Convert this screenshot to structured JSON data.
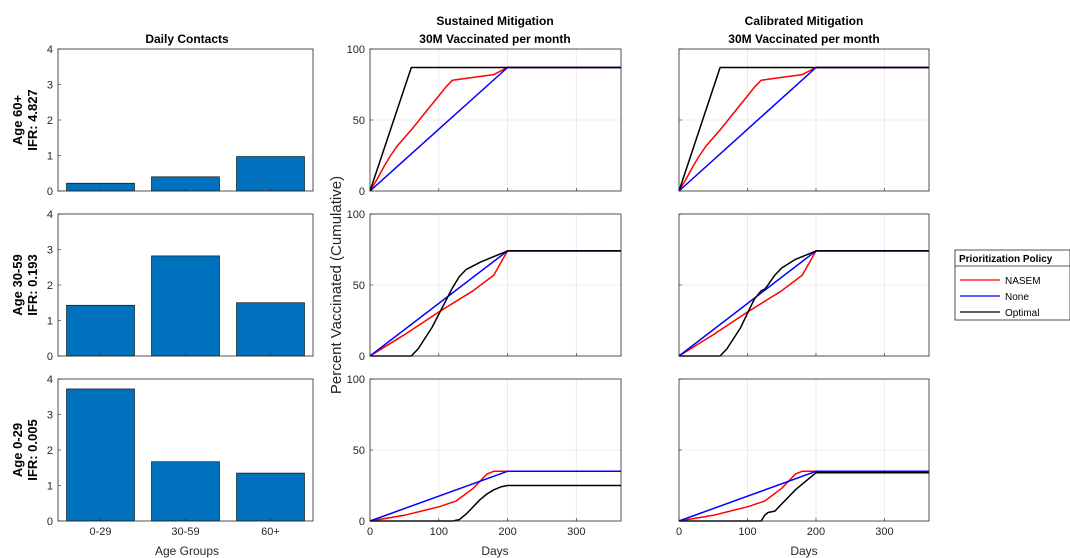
{
  "figure": {
    "bar_title": "Daily Contacts",
    "sustained_title_1": "Sustained Mitigation",
    "sustained_title_2": "30M Vaccinated per month",
    "calibrated_title_1": "Calibrated Mitigation",
    "calibrated_title_2": "30M Vaccinated per month",
    "shared_ylabel": "Percent Vaccinated (Cumulative)",
    "bar_xlabel": "Age Groups",
    "line_xlabel": "Days",
    "rows": [
      {
        "label_1": "Age 60+",
        "label_2": "IFR: 4.827"
      },
      {
        "label_1": "Age 30-59",
        "label_2": "IFR: 0.193"
      },
      {
        "label_1": "Age 0-29",
        "label_2": "IFR: 0.005"
      }
    ],
    "legend": {
      "title": "Prioritization Policy",
      "items": [
        {
          "name": "NASEM",
          "color": "#ff0000"
        },
        {
          "name": "None",
          "color": "#0000ff"
        },
        {
          "name": "Optimal",
          "color": "#000000"
        }
      ]
    },
    "colors": {
      "bar": "#0072bd",
      "grid": "#e6e6e6"
    }
  },
  "chart_data": [
    {
      "type": "bar",
      "title": "Daily Contacts",
      "ylabel": "Age 60+ IFR: 4.827",
      "xlabel": "",
      "categories": [
        "0-29",
        "30-59",
        "60+"
      ],
      "values": [
        0.22,
        0.4,
        0.97
      ],
      "ylim": [
        0,
        4
      ],
      "yticks": [
        0,
        1,
        2,
        3,
        4
      ],
      "grid": false
    },
    {
      "type": "bar",
      "title": "",
      "ylabel": "Age 30-59 IFR: 0.193",
      "xlabel": "",
      "categories": [
        "0-29",
        "30-59",
        "60+"
      ],
      "values": [
        1.43,
        2.82,
        1.5
      ],
      "ylim": [
        0,
        4
      ],
      "yticks": [
        0,
        1,
        2,
        3,
        4
      ],
      "grid": false
    },
    {
      "type": "bar",
      "title": "",
      "ylabel": "Age 0-29 IFR: 0.005",
      "xlabel": "Age Groups",
      "categories": [
        "0-29",
        "30-59",
        "60+"
      ],
      "values": [
        3.72,
        1.67,
        1.35
      ],
      "ylim": [
        0,
        4
      ],
      "yticks": [
        0,
        1,
        2,
        3,
        4
      ],
      "grid": false
    },
    {
      "type": "line",
      "title": "Sustained Mitigation 30M Vaccinated per month",
      "xlim": [
        0,
        365
      ],
      "ylim": [
        0,
        100
      ],
      "grid": true,
      "xticks": [
        0,
        100,
        200,
        300
      ],
      "yticks": [
        0,
        50,
        100
      ],
      "series": [
        {
          "name": "NASEM",
          "color": "#ff0000",
          "x": [
            0,
            10,
            20,
            30,
            40,
            60,
            80,
            100,
            110,
            120,
            150,
            180,
            200,
            365
          ],
          "y": [
            0,
            8,
            17,
            25,
            32,
            43,
            55,
            67,
            73,
            78,
            80,
            82,
            87,
            87
          ]
        },
        {
          "name": "None",
          "color": "#0000ff",
          "x": [
            0,
            200,
            365
          ],
          "y": [
            0,
            87,
            87
          ]
        },
        {
          "name": "Optimal",
          "color": "#000000",
          "x": [
            0,
            60,
            200,
            365
          ],
          "y": [
            0,
            87,
            87,
            87
          ]
        }
      ]
    },
    {
      "type": "line",
      "title": "",
      "xlim": [
        0,
        365
      ],
      "ylim": [
        0,
        100
      ],
      "grid": true,
      "xticks": [
        0,
        100,
        200,
        300
      ],
      "yticks": [
        0,
        50,
        100
      ],
      "series": [
        {
          "name": "NASEM",
          "color": "#ff0000",
          "x": [
            0,
            50,
            100,
            150,
            180,
            200,
            365
          ],
          "y": [
            0,
            15,
            31,
            46,
            57,
            74,
            74
          ]
        },
        {
          "name": "None",
          "color": "#0000ff",
          "x": [
            0,
            200,
            365
          ],
          "y": [
            0,
            74,
            74
          ]
        },
        {
          "name": "Optimal",
          "color": "#000000",
          "x": [
            0,
            60,
            70,
            90,
            120,
            130,
            140,
            160,
            180,
            200,
            365
          ],
          "y": [
            0,
            0,
            5,
            20,
            48,
            56,
            61,
            66,
            70,
            74,
            74
          ]
        }
      ]
    },
    {
      "type": "line",
      "title": "",
      "xlim": [
        0,
        365
      ],
      "ylim": [
        0,
        100
      ],
      "grid": true,
      "xticks": [
        0,
        100,
        200,
        300
      ],
      "yticks": [
        0,
        50,
        100
      ],
      "series": [
        {
          "name": "NASEM",
          "color": "#ff0000",
          "x": [
            0,
            50,
            100,
            125,
            150,
            170,
            180,
            200,
            365
          ],
          "y": [
            0,
            4,
            10,
            14,
            23,
            33,
            35,
            35,
            35
          ]
        },
        {
          "name": "None",
          "color": "#0000ff",
          "x": [
            0,
            200,
            365
          ],
          "y": [
            0,
            35,
            35
          ]
        },
        {
          "name": "Optimal",
          "color": "#000000",
          "x": [
            0,
            120,
            130,
            140,
            150,
            160,
            170,
            180,
            190,
            200,
            365
          ],
          "y": [
            0,
            0,
            1,
            5,
            10,
            15,
            19,
            22,
            24,
            25,
            25
          ]
        }
      ]
    },
    {
      "type": "line",
      "title": "Calibrated Mitigation 30M Vaccinated per month",
      "xlim": [
        0,
        365
      ],
      "ylim": [
        0,
        100
      ],
      "grid": true,
      "xticks": [
        0,
        100,
        200,
        300
      ],
      "yticks": [
        0,
        50,
        100
      ],
      "series": [
        {
          "name": "NASEM",
          "color": "#ff0000",
          "x": [
            0,
            10,
            20,
            30,
            40,
            60,
            80,
            100,
            110,
            120,
            150,
            180,
            200,
            365
          ],
          "y": [
            0,
            8,
            17,
            25,
            32,
            43,
            55,
            67,
            73,
            78,
            80,
            82,
            87,
            87
          ]
        },
        {
          "name": "None",
          "color": "#0000ff",
          "x": [
            0,
            200,
            365
          ],
          "y": [
            0,
            87,
            87
          ]
        },
        {
          "name": "Optimal",
          "color": "#000000",
          "x": [
            0,
            60,
            200,
            365
          ],
          "y": [
            0,
            87,
            87,
            87
          ]
        }
      ]
    },
    {
      "type": "line",
      "title": "",
      "xlim": [
        0,
        365
      ],
      "ylim": [
        0,
        100
      ],
      "grid": true,
      "xticks": [
        0,
        100,
        200,
        300
      ],
      "yticks": [
        0,
        50,
        100
      ],
      "series": [
        {
          "name": "NASEM",
          "color": "#ff0000",
          "x": [
            0,
            50,
            100,
            150,
            180,
            200,
            365
          ],
          "y": [
            0,
            15,
            31,
            46,
            57,
            74,
            74
          ]
        },
        {
          "name": "None",
          "color": "#0000ff",
          "x": [
            0,
            200,
            365
          ],
          "y": [
            0,
            74,
            74
          ]
        },
        {
          "name": "Optimal",
          "color": "#000000",
          "x": [
            0,
            60,
            70,
            90,
            110,
            120,
            125,
            130,
            140,
            150,
            170,
            190,
            200,
            365
          ],
          "y": [
            0,
            0,
            5,
            20,
            40,
            46,
            47,
            50,
            57,
            62,
            68,
            72,
            74,
            74
          ]
        }
      ]
    },
    {
      "type": "line",
      "title": "",
      "xlim": [
        0,
        365
      ],
      "ylim": [
        0,
        100
      ],
      "grid": true,
      "xticks": [
        0,
        100,
        200,
        300
      ],
      "yticks": [
        0,
        50,
        100
      ],
      "series": [
        {
          "name": "NASEM",
          "color": "#ff0000",
          "x": [
            0,
            50,
            100,
            125,
            150,
            170,
            180,
            200,
            365
          ],
          "y": [
            0,
            4,
            10,
            14,
            23,
            33,
            35,
            35,
            35
          ]
        },
        {
          "name": "None",
          "color": "#0000ff",
          "x": [
            0,
            200,
            365
          ],
          "y": [
            0,
            35,
            35
          ]
        },
        {
          "name": "Optimal",
          "color": "#000000",
          "x": [
            0,
            120,
            125,
            130,
            140,
            150,
            160,
            170,
            180,
            190,
            200,
            365
          ],
          "y": [
            0,
            0,
            4,
            6,
            7,
            12,
            17,
            22,
            26,
            30,
            34,
            34
          ]
        }
      ]
    }
  ]
}
